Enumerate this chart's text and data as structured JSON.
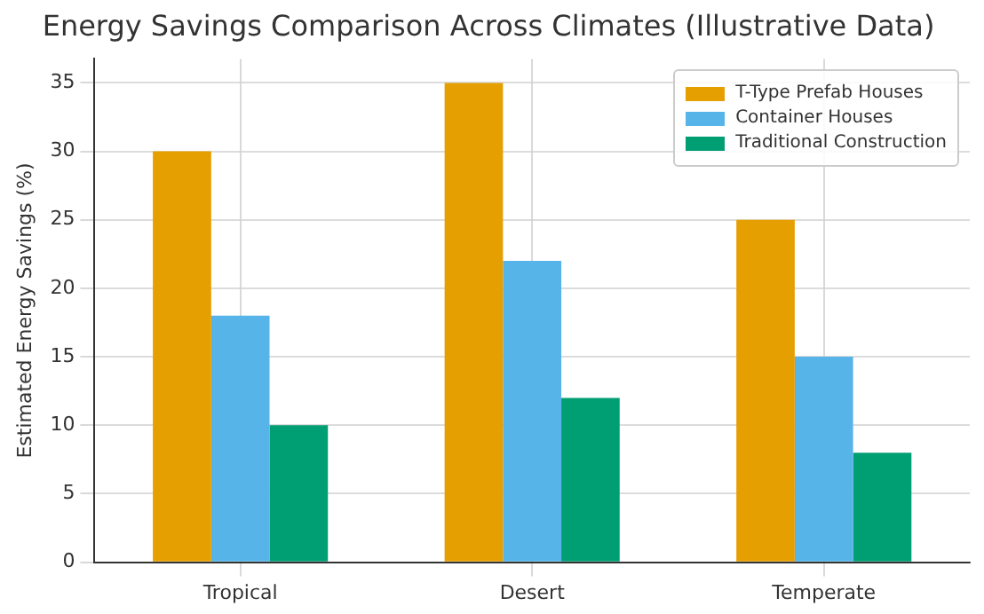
{
  "chart_data": {
    "type": "bar",
    "title": "Energy Savings Comparison Across Climates (Illustrative Data)",
    "ylabel": "Estimated Energy Savings (%)",
    "categories": [
      "Tropical",
      "Desert",
      "Temperate"
    ],
    "series": [
      {
        "name": "T-Type Prefab Houses",
        "color": "#e69f00",
        "values": [
          30,
          35,
          25
        ]
      },
      {
        "name": "Container Houses",
        "color": "#56b4e9",
        "values": [
          18,
          22,
          15
        ]
      },
      {
        "name": "Traditional Construction",
        "color": "#009e73",
        "values": [
          10,
          12,
          8
        ]
      }
    ],
    "ylim": [
      0,
      36.75
    ],
    "yticks": [
      0,
      5,
      10,
      15,
      20,
      25,
      30,
      35
    ],
    "grid": true,
    "legend": "top right"
  }
}
